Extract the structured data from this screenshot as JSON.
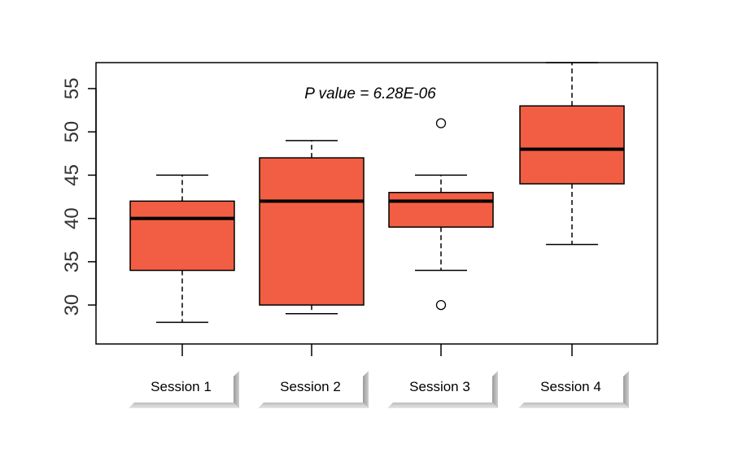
{
  "chart_data": {
    "type": "box",
    "annotation": "P value = 6.28E-06",
    "categories": [
      "Session 1",
      "Session 2",
      "Session 3",
      "Session 4"
    ],
    "yticks": [
      30,
      35,
      40,
      45,
      50,
      55
    ],
    "ylim": [
      25.5,
      58
    ],
    "box_color": "#f25e43",
    "boxes": [
      {
        "category": "Session 1",
        "min": 28,
        "q1": 34,
        "median": 40,
        "q3": 42,
        "max": 45,
        "outliers": []
      },
      {
        "category": "Session 2",
        "min": 29,
        "q1": 30,
        "median": 42,
        "q3": 47,
        "max": 49,
        "outliers": []
      },
      {
        "category": "Session 3",
        "min": 34,
        "q1": 39,
        "median": 42,
        "q3": 43,
        "max": 45,
        "outliers": [
          30,
          51
        ]
      },
      {
        "category": "Session 4",
        "min": 37,
        "q1": 44,
        "median": 48,
        "q3": 53,
        "max": 58,
        "outliers": []
      }
    ]
  }
}
